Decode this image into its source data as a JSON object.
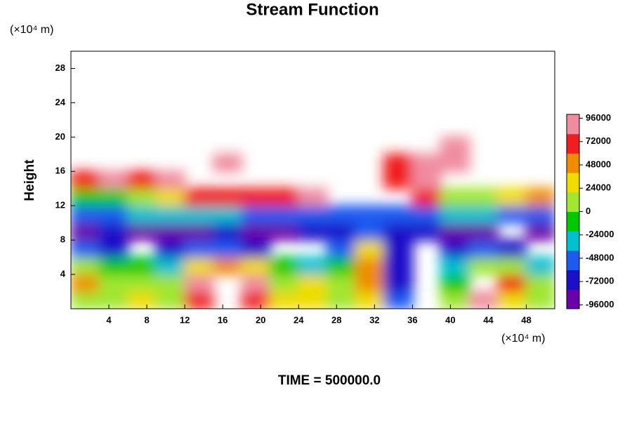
{
  "chart_data": {
    "type": "heatmap",
    "title": "Stream Function",
    "ylabel": "Height",
    "y_unit": "(×10⁴ m)",
    "x_unit": "(×10⁴ m)",
    "footer": "TIME = 500000.0",
    "xlim": [
      0,
      51
    ],
    "ylim": [
      0,
      30
    ],
    "xticks": [
      4,
      8,
      12,
      16,
      20,
      24,
      28,
      32,
      36,
      40,
      44,
      48
    ],
    "yticks": [
      4,
      8,
      12,
      16,
      20,
      24,
      28
    ],
    "x": [
      1.5,
      4.5,
      7.5,
      10.5,
      13.5,
      16.5,
      19.5,
      22.5,
      25.5,
      28.5,
      31.5,
      34.5,
      37.5,
      40.5,
      43.5,
      46.5,
      49.5
    ],
    "y": [
      1,
      3,
      5,
      7,
      9,
      11,
      13,
      15,
      17,
      19,
      21,
      23,
      25,
      27,
      29
    ],
    "z": [
      [
        0,
        10000,
        20000,
        10000,
        70000,
        null,
        60000,
        20000,
        30000,
        10000,
        30000,
        -60000,
        null,
        0,
        80000,
        30000,
        0
      ],
      [
        40000,
        0,
        10000,
        0,
        80000,
        null,
        80000,
        10000,
        20000,
        0,
        40000,
        -70000,
        null,
        -20000,
        null,
        60000,
        10000
      ],
      [
        0,
        -20000,
        -20000,
        -30000,
        20000,
        40000,
        20000,
        -10000,
        -40000,
        -20000,
        40000,
        -80000,
        null,
        -40000,
        10000,
        0,
        -30000
      ],
      [
        -60000,
        -80000,
        null,
        -80000,
        -60000,
        -60000,
        -70000,
        null,
        null,
        -60000,
        20000,
        -80000,
        null,
        -80000,
        -60000,
        -80000,
        null
      ],
      [
        -90000,
        -80000,
        -90000,
        -90000,
        -90000,
        -80000,
        -90000,
        -90000,
        -80000,
        -70000,
        -60000,
        -80000,
        -80000,
        -90000,
        -90000,
        null,
        -90000
      ],
      [
        -60000,
        -50000,
        -40000,
        -30000,
        -30000,
        -30000,
        -50000,
        -60000,
        -60000,
        -60000,
        -60000,
        -50000,
        -50000,
        -40000,
        -40000,
        -50000,
        -60000
      ],
      [
        -20000,
        -10000,
        10000,
        30000,
        60000,
        70000,
        60000,
        70000,
        80000,
        null,
        null,
        null,
        60000,
        0,
        0,
        20000,
        40000
      ],
      [
        70000,
        80000,
        60000,
        90000,
        null,
        null,
        null,
        null,
        null,
        null,
        null,
        70000,
        80000,
        null,
        null,
        null,
        null
      ],
      [
        null,
        null,
        null,
        null,
        null,
        80000,
        null,
        null,
        null,
        null,
        null,
        70000,
        80000,
        80000,
        null,
        null,
        null
      ],
      [
        null,
        null,
        null,
        null,
        null,
        null,
        null,
        null,
        null,
        null,
        null,
        null,
        null,
        90000,
        null,
        null,
        null
      ],
      [
        null,
        null,
        null,
        null,
        null,
        null,
        null,
        null,
        null,
        null,
        null,
        null,
        null,
        null,
        null,
        null,
        null
      ],
      [
        null,
        null,
        null,
        null,
        null,
        null,
        null,
        null,
        null,
        null,
        null,
        null,
        null,
        null,
        null,
        null,
        null
      ],
      [
        null,
        null,
        null,
        null,
        null,
        null,
        null,
        null,
        null,
        null,
        null,
        null,
        null,
        null,
        null,
        null,
        null
      ],
      [
        null,
        null,
        null,
        null,
        null,
        null,
        null,
        null,
        null,
        null,
        null,
        null,
        null,
        null,
        null,
        null,
        null
      ],
      [
        null,
        null,
        null,
        null,
        null,
        null,
        null,
        null,
        null,
        null,
        null,
        null,
        null,
        null,
        null,
        null,
        null
      ]
    ],
    "zlim": [
      -100000,
      100000
    ],
    "colorbar_ticks": [
      -96000,
      -72000,
      -48000,
      -24000,
      0,
      24000,
      48000,
      72000,
      96000
    ],
    "colorscale": [
      "#6a00a8",
      "#1a10c8",
      "#1e5af0",
      "#00c0d0",
      "#00c800",
      "#a0e632",
      "#f0dc00",
      "#f08c00",
      "#f01e1e",
      "#f08ca0"
    ]
  }
}
